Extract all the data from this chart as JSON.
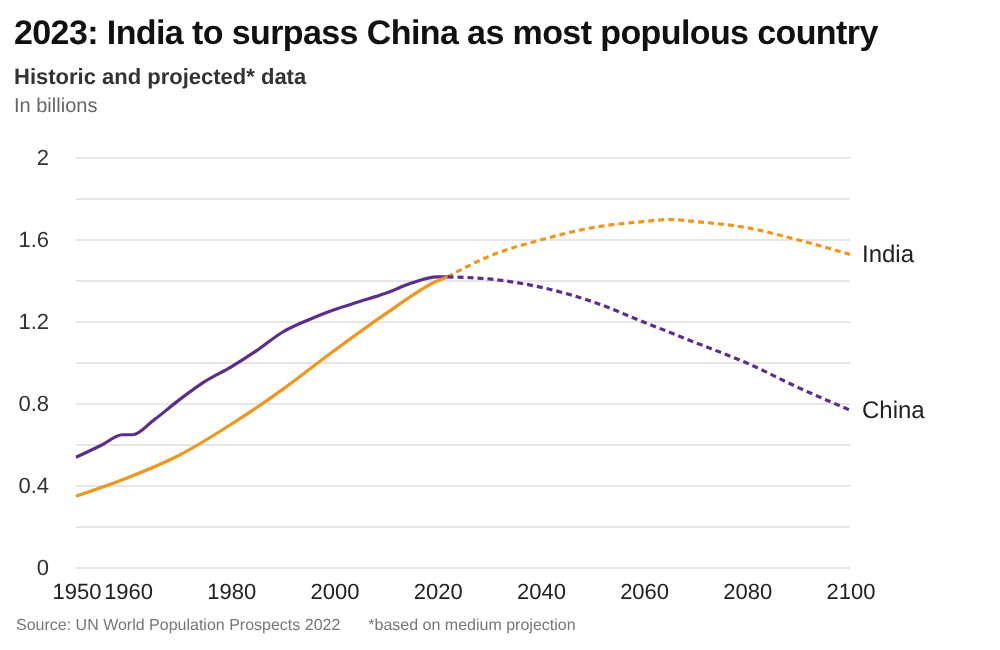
{
  "chart_data": {
    "type": "line",
    "title": "2023: India to surpass China as most populous country",
    "subtitle": "Historic and projected* data",
    "ylabel": "In billions",
    "annotations": [
      "Source: UN World Population Prospects 2022",
      "*based on medium projection"
    ],
    "xlim": [
      1950,
      2100
    ],
    "xticks": [
      1950,
      1960,
      1980,
      2000,
      2020,
      2040,
      2060,
      2080,
      2100
    ],
    "ylim": [
      0,
      2
    ],
    "yticks": [
      0,
      {
        "value": 0.2,
        "label": null
      },
      0.4,
      {
        "value": 0.6,
        "label": null
      },
      0.8,
      {
        "value": 1,
        "label": null
      },
      1.2,
      {
        "value": 1.4,
        "label": null
      },
      1.6,
      {
        "value": 1.8,
        "label": null
      },
      2
    ],
    "grid": "y",
    "legend": false,
    "series": [
      {
        "color": "#5b2d8e",
        "line_style": "solid",
        "x": [
          1950,
          1955,
          1959,
          1961,
          1965,
          1970,
          1975,
          1980,
          1985,
          1990,
          1995,
          2000,
          2005,
          2010,
          2015,
          2020,
          2022
        ],
        "values": [
          0.54,
          0.6,
          0.65,
          0.65,
          0.72,
          0.82,
          0.91,
          0.98,
          1.06,
          1.15,
          1.21,
          1.26,
          1.3,
          1.34,
          1.39,
          1.42,
          1.42
        ]
      },
      {
        "color": "#f0961e",
        "line_style": "solid",
        "x": [
          1950,
          1960,
          1970,
          1980,
          1990,
          2000,
          2010,
          2020,
          2022
        ],
        "values": [
          0.35,
          0.44,
          0.55,
          0.7,
          0.87,
          1.06,
          1.24,
          1.4,
          1.42
        ]
      },
      {
        "name": "India",
        "color": "#f0961e",
        "line_style": "dashed",
        "x": [
          2022,
          2030,
          2040,
          2050,
          2060,
          2065,
          2070,
          2080,
          2090,
          2100
        ],
        "values": [
          1.42,
          1.52,
          1.6,
          1.66,
          1.69,
          1.7,
          1.69,
          1.66,
          1.6,
          1.53
        ]
      },
      {
        "name": "China",
        "color": "#5b2d8e",
        "line_style": "dashed",
        "x": [
          2022,
          2030,
          2040,
          2050,
          2060,
          2070,
          2080,
          2090,
          2100
        ],
        "values": [
          1.42,
          1.41,
          1.37,
          1.3,
          1.2,
          1.1,
          1.0,
          0.88,
          0.77
        ]
      }
    ]
  }
}
